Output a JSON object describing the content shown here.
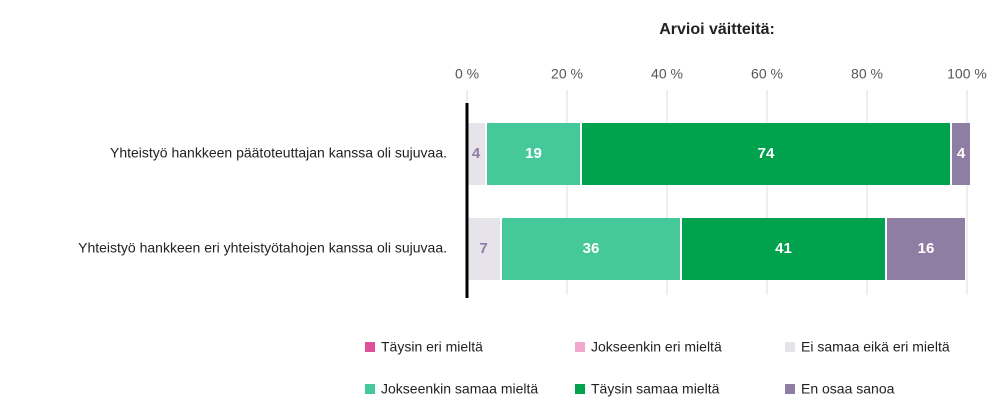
{
  "chart_data": {
    "type": "stacked_barh",
    "title": "Arvioi väitteitä:",
    "categories": [
      "Yhteistyö hankkeen päätoteuttajan kanssa oli sujuvaa.",
      "Yhteistyö hankkeen eri yhteistyötahojen kanssa oli sujuvaa."
    ],
    "series": [
      {
        "name": "Täysin eri mieltä",
        "color": "#e0509a",
        "values": [
          0,
          0
        ]
      },
      {
        "name": "Jokseenkin eri mieltä",
        "color": "#f2a7cf",
        "values": [
          0,
          0
        ]
      },
      {
        "name": "Ei samaa eikä eri mieltä",
        "color": "#e6e3ea",
        "values": [
          4,
          7
        ]
      },
      {
        "name": "Jokseenkin samaa mieltä",
        "color": "#45c89a",
        "values": [
          19,
          36
        ]
      },
      {
        "name": "Täysin samaa mieltä",
        "color": "#00a24e",
        "values": [
          74,
          41
        ]
      },
      {
        "name": "En osaa sanoa",
        "color": "#8e7ea3",
        "values": [
          4,
          16
        ]
      }
    ],
    "xlim": [
      0,
      100
    ],
    "xticks": [
      {
        "value": 0,
        "label": "0 %"
      },
      {
        "value": 20,
        "label": "20 %"
      },
      {
        "value": 40,
        "label": "40 %"
      },
      {
        "value": 60,
        "label": "60 %"
      },
      {
        "value": 80,
        "label": "80 %"
      },
      {
        "value": 100,
        "label": "100 %"
      }
    ],
    "grid": true
  }
}
